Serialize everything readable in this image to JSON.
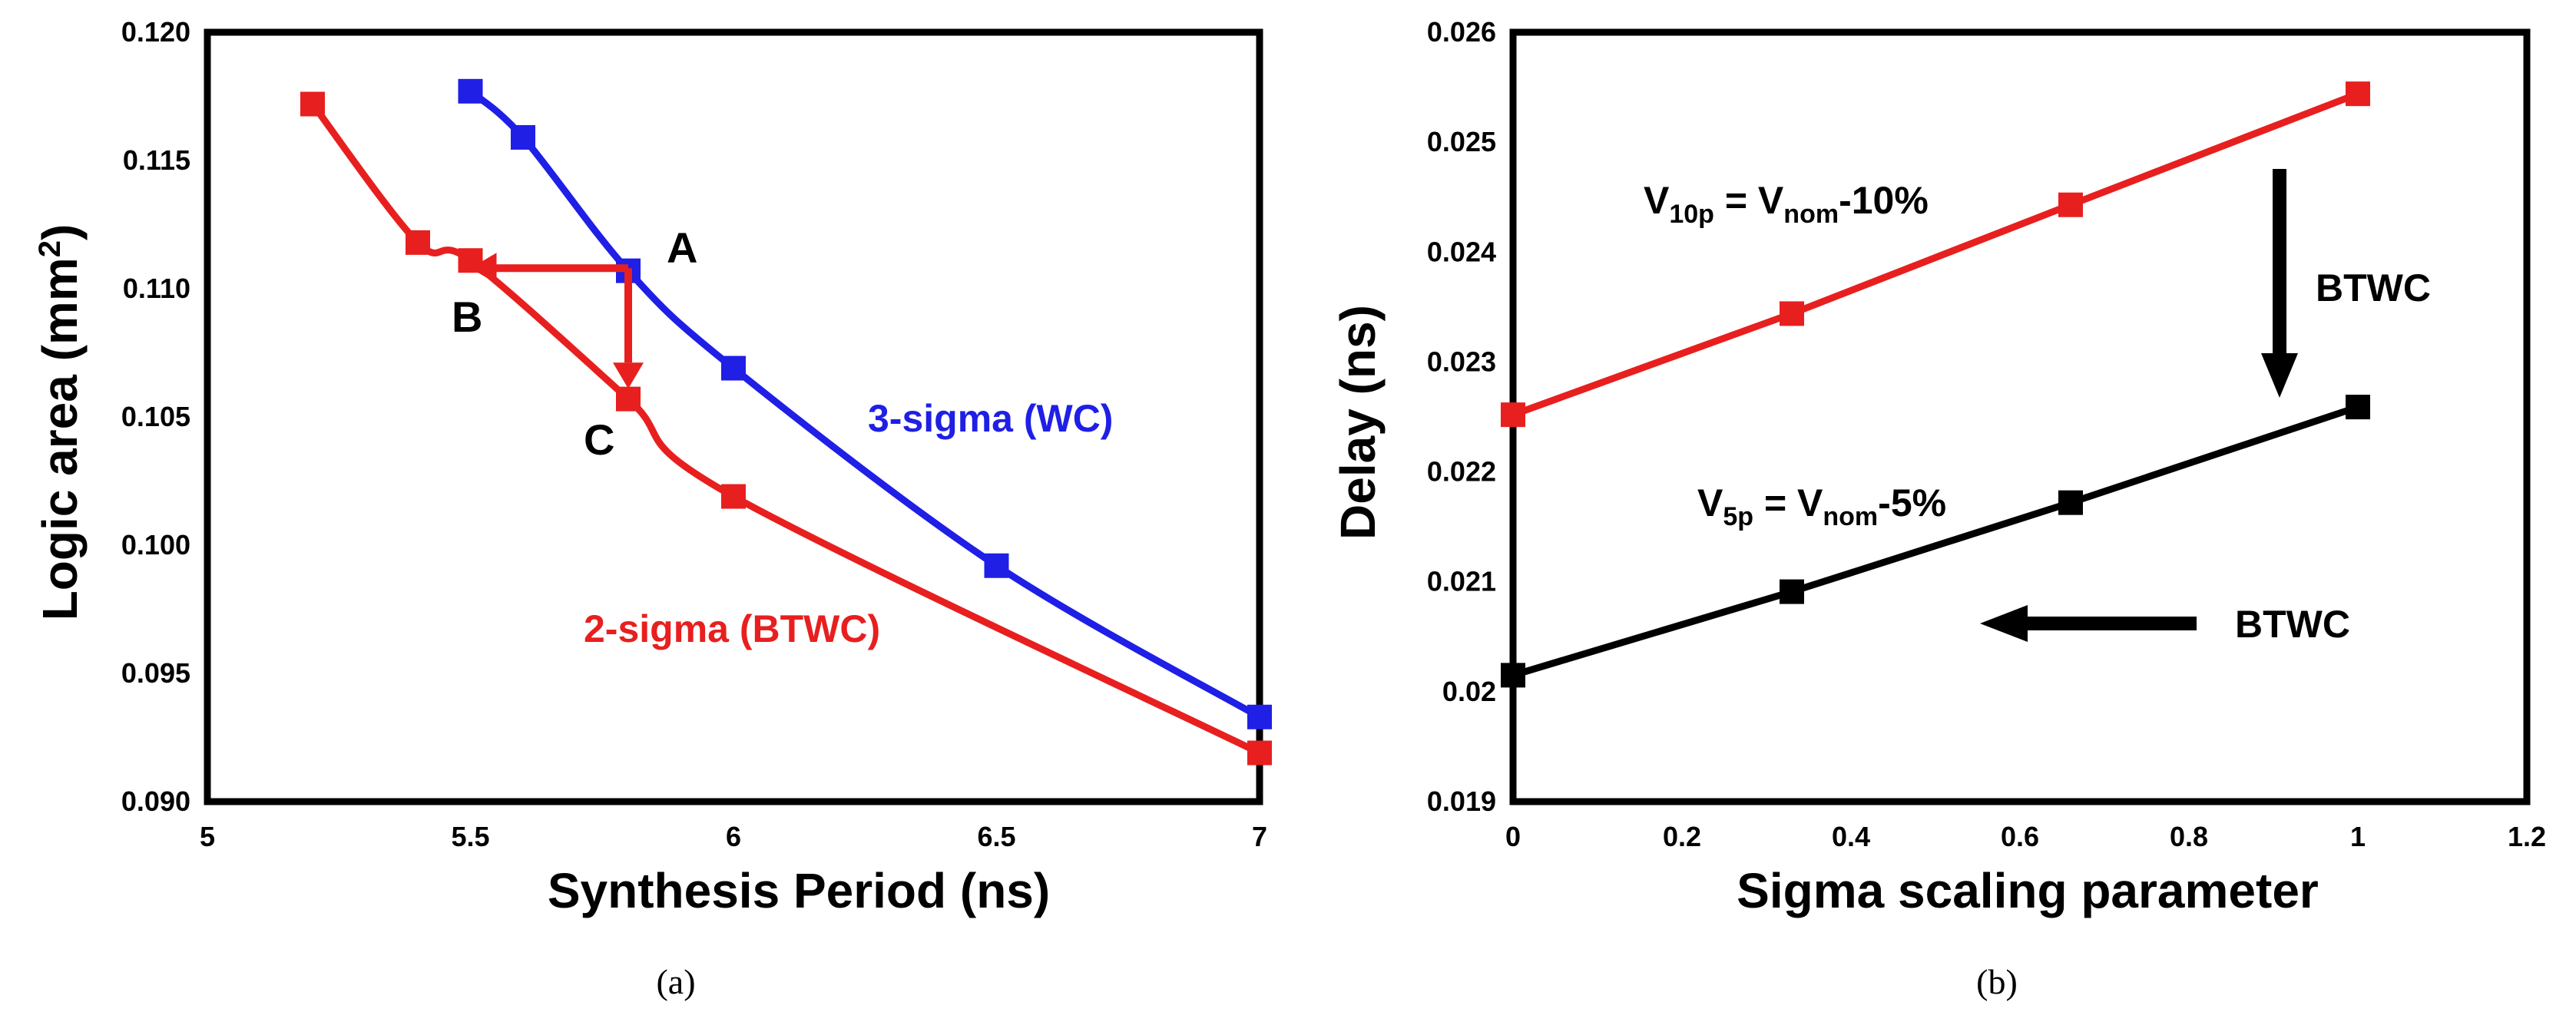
{
  "chart_data": [
    {
      "type": "line",
      "panel": "(a)",
      "xlabel": "Synthesis Period (ns)",
      "ylabel": "Logic area (mm",
      "ylabel_sup": "2",
      "ylabel_close": ")",
      "xlim": [
        5,
        7
      ],
      "ylim": [
        0.09,
        0.12
      ],
      "xticks": [
        "5",
        "5.5",
        "6",
        "6.5",
        "7"
      ],
      "yticks": [
        "0.090",
        "0.095",
        "0.100",
        "0.105",
        "0.110",
        "0.115",
        "0.120"
      ],
      "grid": false,
      "series": [
        {
          "name": "3-sigma (WC)",
          "color": "#1f1fe6",
          "x": [
            5.5,
            5.6,
            5.8,
            6.0,
            6.5,
            7.0
          ],
          "y": [
            0.1177,
            0.1159,
            0.1107,
            0.1069,
            0.0992,
            0.0933
          ]
        },
        {
          "name": "2-sigma (BTWC)",
          "color": "#e81f1f",
          "x": [
            5.2,
            5.4,
            5.5,
            5.8,
            6.0,
            7.0
          ],
          "y": [
            0.1172,
            0.1118,
            0.1111,
            0.1057,
            0.1019,
            0.0919
          ]
        }
      ],
      "annotations": {
        "A": "A",
        "B": "B",
        "C": "C",
        "label_wc": "3-sigma (WC)",
        "label_btwc": "2-sigma (BTWC)"
      },
      "arrows": [
        {
          "from": [
            5.8,
            0.1108
          ],
          "to": [
            5.5,
            0.1108
          ],
          "color": "#e81f1f"
        },
        {
          "from": [
            5.8,
            0.1108
          ],
          "to": [
            5.8,
            0.1061
          ],
          "color": "#e81f1f"
        }
      ]
    },
    {
      "type": "line",
      "panel": "(b)",
      "xlabel": "Sigma scaling parameter",
      "ylabel": "Delay (ns)",
      "xlim": [
        0,
        1.2
      ],
      "ylim": [
        0.019,
        0.026
      ],
      "xticks": [
        "0",
        "0.2",
        "0.4",
        "0.6",
        "0.8",
        "1",
        "1.2"
      ],
      "yticks": [
        "0.019",
        "0.02",
        "0.021",
        "0.022",
        "0.023",
        "0.024",
        "0.025",
        "0.026"
      ],
      "grid": false,
      "series": [
        {
          "name": "V10p = Vnom-10%",
          "color": "#e81f1f",
          "x": [
            0,
            0.33,
            0.66,
            1.0
          ],
          "y": [
            0.02252,
            0.02344,
            0.02443,
            0.02544
          ]
        },
        {
          "name": "V5p = Vnom-5%",
          "color": "#000000",
          "x": [
            0,
            0.33,
            0.66,
            1.0
          ],
          "y": [
            0.02015,
            0.02091,
            0.02172,
            0.02259
          ]
        }
      ],
      "annotations": {
        "v10_main": "V",
        "v10_sub": "10p",
        "v10_mid": " = V",
        "v10_sub2": "nom",
        "v10_tail": "-10%",
        "v5_main": "V",
        "v5_sub": "5p",
        "v5_mid": " = V",
        "v5_sub2": "nom",
        "v5_tail": "-5%",
        "btwc_down": "BTWC",
        "btwc_left": "BTWC"
      }
    }
  ],
  "captions": {
    "a": "(a)",
    "b": "(b)"
  }
}
